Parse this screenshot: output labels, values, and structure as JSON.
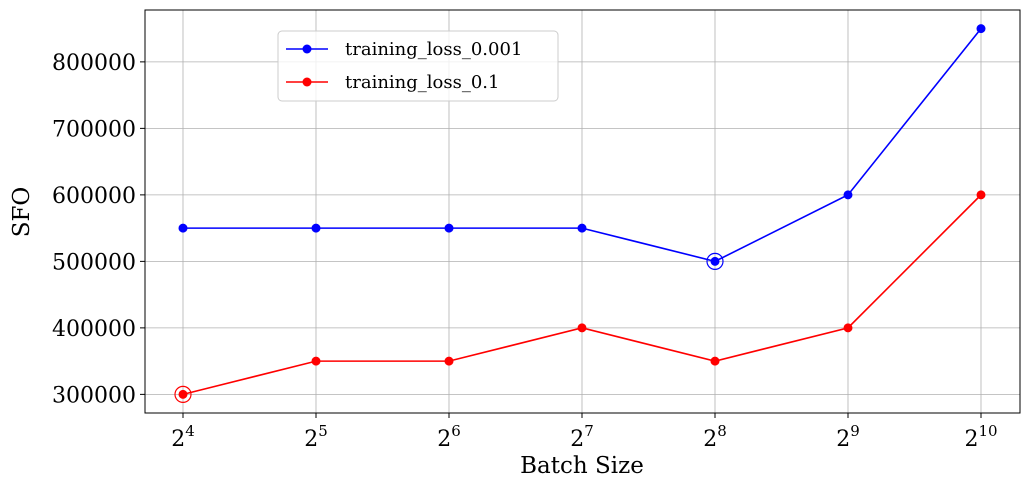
{
  "chart_data": {
    "type": "line",
    "title": "",
    "xlabel": "Batch Size",
    "ylabel": "SFO",
    "x_scale": "log2",
    "x": [
      16,
      32,
      64,
      128,
      256,
      512,
      1024
    ],
    "x_tick_labels": [
      {
        "base": "2",
        "exp": "4"
      },
      {
        "base": "2",
        "exp": "5"
      },
      {
        "base": "2",
        "exp": "6"
      },
      {
        "base": "2",
        "exp": "7"
      },
      {
        "base": "2",
        "exp": "8"
      },
      {
        "base": "2",
        "exp": "9"
      },
      {
        "base": "2",
        "exp": "10"
      }
    ],
    "y_ticks": [
      300000,
      400000,
      500000,
      600000,
      700000,
      800000
    ],
    "y_tick_labels": [
      "300000",
      "400000",
      "500000",
      "600000",
      "700000",
      "800000"
    ],
    "ylim": [
      272000,
      878000
    ],
    "grid": true,
    "legend_position": "top-left",
    "series": [
      {
        "name": "training_loss_0.001",
        "color": "#0000ff",
        "values": [
          550000,
          550000,
          550000,
          550000,
          500000,
          600000,
          850000
        ],
        "highlight_index": 4
      },
      {
        "name": "training_loss_0.1",
        "color": "#ff0000",
        "values": [
          300000,
          350000,
          350000,
          400000,
          350000,
          400000,
          600000
        ],
        "highlight_index": 0
      }
    ]
  }
}
